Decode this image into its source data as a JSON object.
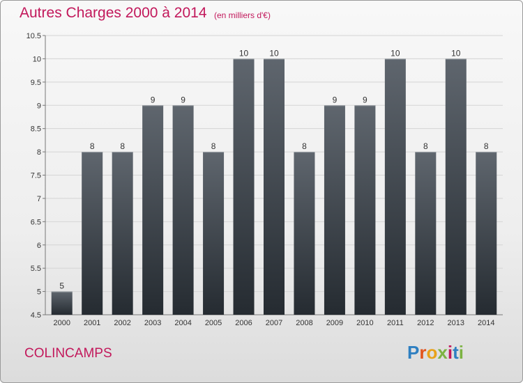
{
  "header": {
    "title": "Autres Charges 2000 à 2014",
    "subtitle": "(en milliers d'€)"
  },
  "footer": {
    "commune": "COLINCAMPS",
    "brand": "Proxiti"
  },
  "colors": {
    "title": "#c2185b",
    "bar_top": "#5f666e",
    "bar_bottom": "#252b31",
    "logo_letters": [
      "#2e7fc1",
      "#e2541c",
      "#e8a21a",
      "#7cb342",
      "#c2185b",
      "#2e7fc1",
      "#7cb342"
    ]
  },
  "chart_data": {
    "type": "bar",
    "categories": [
      "2000",
      "2001",
      "2002",
      "2003",
      "2004",
      "2005",
      "2006",
      "2007",
      "2008",
      "2009",
      "2010",
      "2011",
      "2012",
      "2013",
      "2014"
    ],
    "values": [
      5,
      8,
      8,
      9,
      9,
      8,
      10,
      10,
      8,
      9,
      9,
      10,
      8,
      10,
      8
    ],
    "data_labels": [
      "5",
      "8",
      "8",
      "9",
      "9",
      "8",
      "10",
      "10",
      "8",
      "9",
      "9",
      "10",
      "8",
      "10",
      "8"
    ],
    "ylim": [
      4.5,
      10.5
    ],
    "yticks": [
      "4.5",
      "5",
      "5.5",
      "6",
      "6.5",
      "7",
      "7.5",
      "8",
      "8.5",
      "9",
      "9.5",
      "10",
      "10.5"
    ],
    "grid": true,
    "legend": "none",
    "xlabel": "",
    "ylabel": ""
  }
}
